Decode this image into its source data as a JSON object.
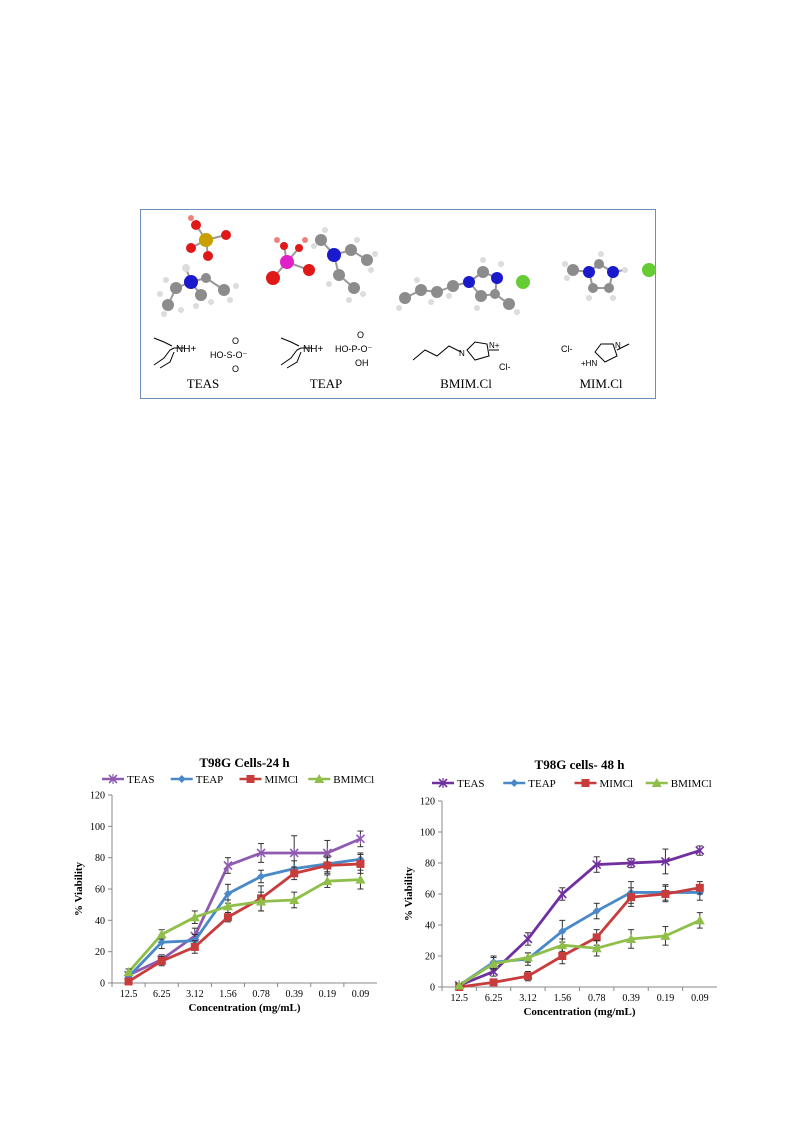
{
  "figure": {
    "compounds": [
      {
        "label": "TEAS",
        "cation_text": "NH+",
        "anion_text": "HO-S(=O)2-O-"
      },
      {
        "label": "TEAP",
        "cation_text": "NH+",
        "anion_text": "HO-P(=O)(OH)-O-"
      },
      {
        "label": "BMIM.Cl",
        "counterion": "Cl-"
      },
      {
        "label": "MIM.Cl",
        "counterion": "Cl-"
      }
    ],
    "colors": {
      "carbon": "#8c8c8c",
      "hydrogen": "#dcdcdc",
      "oxygen": "#e01818",
      "sulfur": "#c8a000",
      "phosphorus": "#e020c8",
      "nitrogen": "#1a1acc",
      "chlorine": "#66cc33",
      "frame": "#6d8fb8"
    }
  },
  "chart_data": [
    {
      "type": "line",
      "title": "T98G Cells-24 h",
      "xlabel": "Concentration (mg/mL)",
      "ylabel": "% Viability",
      "ylim": [
        0,
        120
      ],
      "yticks": [
        0,
        20,
        40,
        60,
        80,
        100,
        120
      ],
      "categories": [
        "12.5",
        "6.25",
        "3.12",
        "1.56",
        "0.78",
        "0.39",
        "0.19",
        "0.09"
      ],
      "legend_position": "top",
      "series": [
        {
          "name": "TEAS",
          "color": "#8e5bb0",
          "marker": "x",
          "values": [
            5,
            15,
            30,
            75,
            83,
            83,
            83,
            92
          ],
          "errors": [
            2,
            3,
            5,
            5,
            6,
            11,
            8,
            5
          ]
        },
        {
          "name": "TEAP",
          "color": "#4a89c8",
          "marker": "diamond",
          "values": [
            4,
            26,
            27,
            57,
            68,
            73,
            76,
            79
          ],
          "errors": [
            2,
            4,
            4,
            6,
            4,
            5,
            5,
            4
          ]
        },
        {
          "name": "MIMCl",
          "color": "#c83c3c",
          "marker": "square",
          "values": [
            1,
            14,
            23,
            42,
            54,
            70,
            75,
            76
          ],
          "errors": [
            1,
            3,
            4,
            3,
            8,
            4,
            5,
            6
          ]
        },
        {
          "name": "BMIMCl",
          "color": "#8fbf4a",
          "marker": "triangle",
          "values": [
            7,
            31,
            42,
            49,
            52,
            53,
            65,
            66
          ],
          "errors": [
            2,
            3,
            4,
            4,
            6,
            5,
            4,
            6
          ]
        }
      ]
    },
    {
      "type": "line",
      "title": "T98G cells- 48 h",
      "xlabel": "Concentration (mg/mL)",
      "ylabel": "% Viability",
      "ylim": [
        0,
        120
      ],
      "yticks": [
        0,
        20,
        40,
        60,
        80,
        100,
        120
      ],
      "categories": [
        "12.5",
        "6.25",
        "3.12",
        "1.56",
        "0.78",
        "0.39",
        "0.19",
        "0.09"
      ],
      "legend_position": "top",
      "series": [
        {
          "name": "TEAS",
          "color": "#7030a0",
          "marker": "x",
          "values": [
            1,
            10,
            31,
            60,
            79,
            80,
            81,
            88
          ],
          "errors": [
            1,
            3,
            4,
            4,
            5,
            3,
            8,
            3
          ]
        },
        {
          "name": "TEAP",
          "color": "#4a89c8",
          "marker": "diamond",
          "values": [
            1,
            16,
            18,
            36,
            49,
            61,
            61,
            61
          ],
          "errors": [
            1,
            4,
            4,
            7,
            5,
            7,
            5,
            5
          ]
        },
        {
          "name": "MIMCl",
          "color": "#c83c3c",
          "marker": "square",
          "values": [
            0,
            3,
            7,
            20,
            32,
            58,
            60,
            64
          ],
          "errors": [
            1,
            2,
            3,
            5,
            5,
            6,
            5,
            4
          ]
        },
        {
          "name": "BMIMCl",
          "color": "#8fbf4a",
          "marker": "triangle",
          "values": [
            1,
            15,
            19,
            27,
            25,
            31,
            33,
            43
          ],
          "errors": [
            1,
            4,
            3,
            4,
            5,
            6,
            6,
            5
          ]
        }
      ]
    }
  ]
}
